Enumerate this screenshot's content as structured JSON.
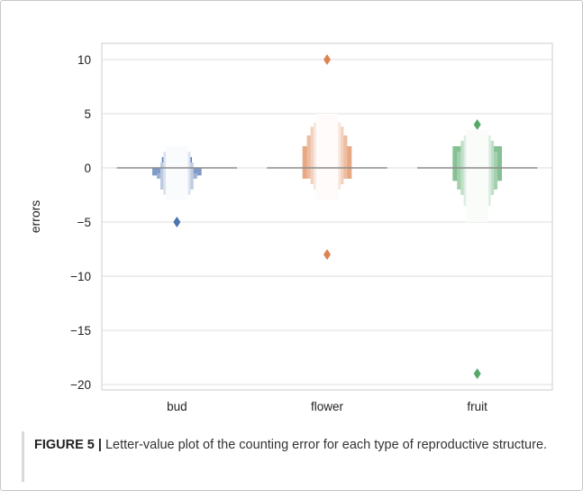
{
  "caption": {
    "label": "FIGURE 5 |",
    "text": " Letter-value plot of the counting error for each type of reproductive structure."
  },
  "chart_data": {
    "type": "boxen",
    "title": "",
    "xlabel": "",
    "ylabel": "errors",
    "ylim": [
      -20.5,
      11.5
    ],
    "yticks": [
      10,
      5,
      0,
      -5,
      -10,
      -15,
      -20
    ],
    "ytick_labels": [
      "10",
      "5",
      "0",
      "−5",
      "−10",
      "−15",
      "−20"
    ],
    "grid": true,
    "categories": [
      "bud",
      "flower",
      "fruit"
    ],
    "series": [
      {
        "category": "bud",
        "color": "#4c72b0",
        "median": 0,
        "letter_values": [
          [
            -0.5,
            1
          ],
          [
            -0.7,
            0
          ],
          [
            -1,
            -0.5
          ],
          [
            -2,
            0.5
          ],
          [
            -2.5,
            1.5
          ],
          [
            -3,
            2
          ]
        ],
        "outliers": [
          -5
        ]
      },
      {
        "category": "flower",
        "color": "#dd8452",
        "median": 0,
        "letter_values": [
          [
            0,
            1
          ],
          [
            -1,
            2
          ],
          [
            -1,
            3
          ],
          [
            -1.5,
            3.8
          ],
          [
            -2,
            4.2
          ],
          [
            -3,
            5
          ]
        ],
        "outliers": [
          10,
          -8
        ]
      },
      {
        "category": "fruit",
        "color": "#55a868",
        "median": 0,
        "letter_values": [
          [
            -1,
            1
          ],
          [
            -1.2,
            2
          ],
          [
            -2,
            1.5
          ],
          [
            -2.5,
            2.5
          ],
          [
            -3.5,
            3
          ],
          [
            -5,
            3.5
          ]
        ],
        "outliers": [
          4,
          -19
        ]
      }
    ]
  }
}
